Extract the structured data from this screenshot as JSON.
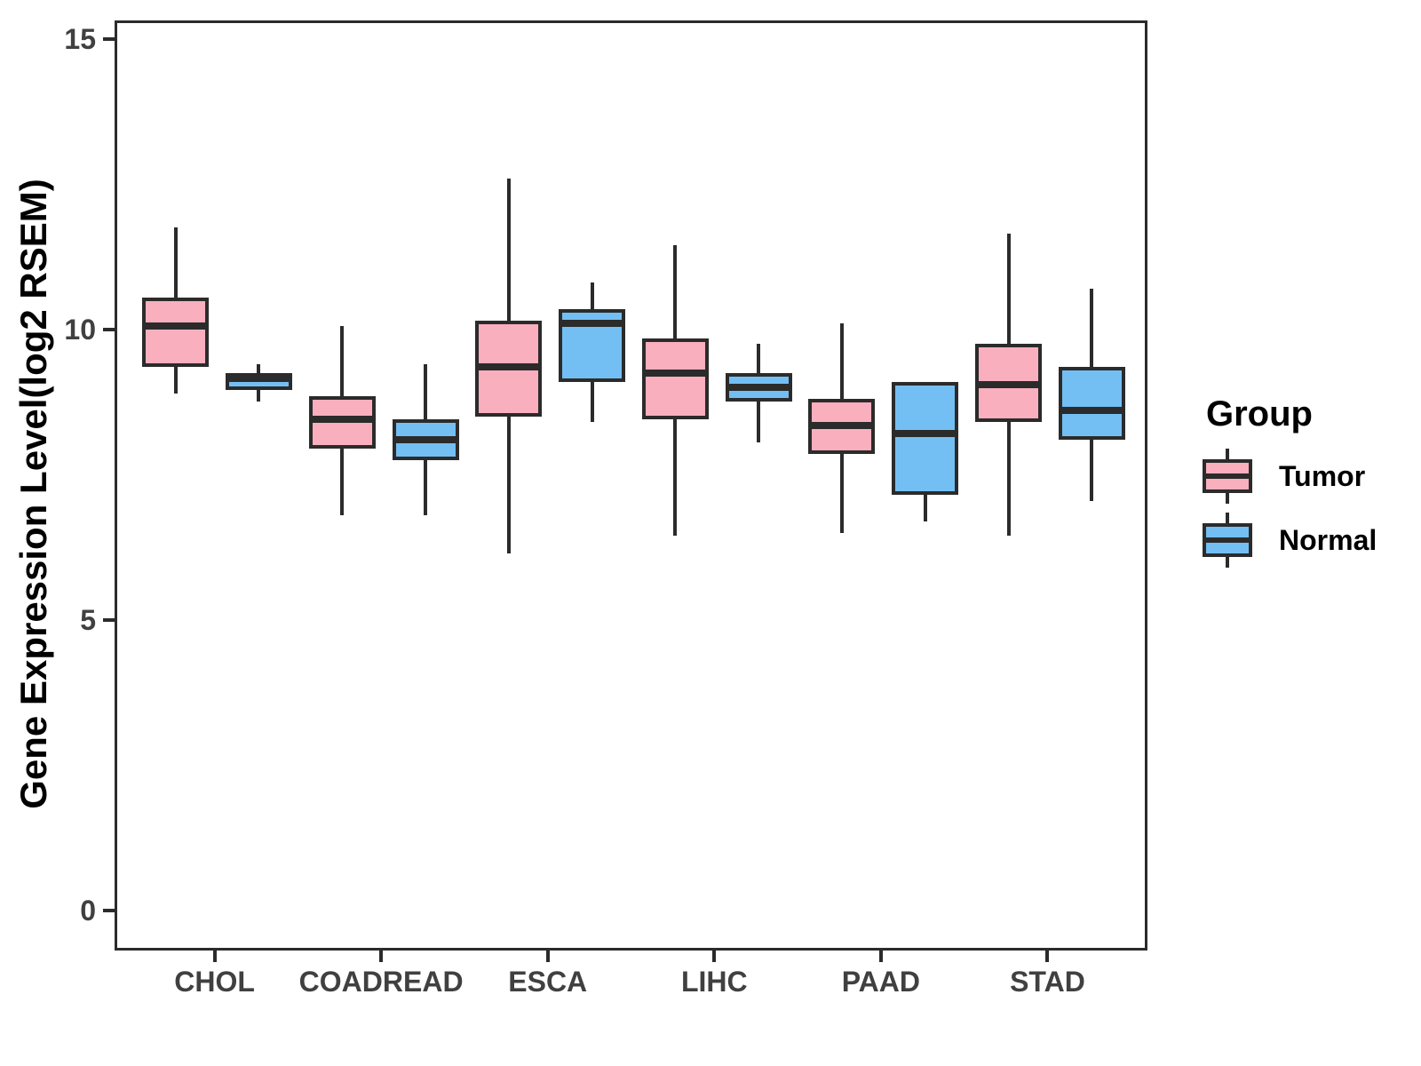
{
  "legend": {
    "title": "Group",
    "items": [
      {
        "label": "Tumor",
        "color": "#F9AFBE"
      },
      {
        "label": "Normal",
        "color": "#73BFF4"
      }
    ]
  },
  "chart_data": {
    "type": "boxplot",
    "title": "",
    "xlabel": "",
    "ylabel": "Gene Expression Level(log2 RSEM)",
    "ylim": [
      0,
      15
    ],
    "y_ticks": [
      0,
      5,
      10,
      15
    ],
    "grid": "off",
    "legend_position": "right",
    "categories": [
      "CHOL",
      "COADREAD",
      "ESCA",
      "LIHC",
      "PAAD",
      "STAD"
    ],
    "series": [
      {
        "name": "Tumor",
        "color": "#F9AFBE",
        "boxes": [
          {
            "category": "CHOL",
            "min": 8.95,
            "q1": 9.4,
            "median": 10.1,
            "q3": 10.6,
            "max": 11.8
          },
          {
            "category": "COADREAD",
            "min": 6.85,
            "q1": 8.0,
            "median": 8.5,
            "q3": 8.9,
            "max": 10.1
          },
          {
            "category": "ESCA",
            "min": 6.2,
            "q1": 8.55,
            "median": 9.4,
            "q3": 10.2,
            "max": 12.65
          },
          {
            "category": "LIHC",
            "min": 6.5,
            "q1": 8.5,
            "median": 9.3,
            "q3": 9.9,
            "max": 11.5
          },
          {
            "category": "PAAD",
            "min": 6.55,
            "q1": 7.9,
            "median": 8.4,
            "q3": 8.85,
            "max": 10.15
          },
          {
            "category": "STAD",
            "min": 6.5,
            "q1": 8.45,
            "median": 9.1,
            "q3": 9.8,
            "max": 11.7
          }
        ]
      },
      {
        "name": "Normal",
        "color": "#73BFF4",
        "boxes": [
          {
            "category": "CHOL",
            "min": 8.8,
            "q1": 9.0,
            "median": 9.2,
            "q3": 9.3,
            "max": 9.45
          },
          {
            "category": "COADREAD",
            "min": 6.85,
            "q1": 7.8,
            "median": 8.15,
            "q3": 8.5,
            "max": 9.45
          },
          {
            "category": "ESCA",
            "min": 8.45,
            "q1": 9.15,
            "median": 10.15,
            "q3": 10.4,
            "max": 10.85
          },
          {
            "category": "LIHC",
            "min": 8.1,
            "q1": 8.8,
            "median": 9.05,
            "q3": 9.3,
            "max": 9.8
          },
          {
            "category": "PAAD",
            "min": 6.75,
            "q1": 7.2,
            "median": 8.25,
            "q3": 9.15,
            "max": 9.15
          },
          {
            "category": "STAD",
            "min": 7.1,
            "q1": 8.15,
            "median": 8.65,
            "q3": 9.4,
            "max": 10.75
          }
        ]
      }
    ]
  }
}
